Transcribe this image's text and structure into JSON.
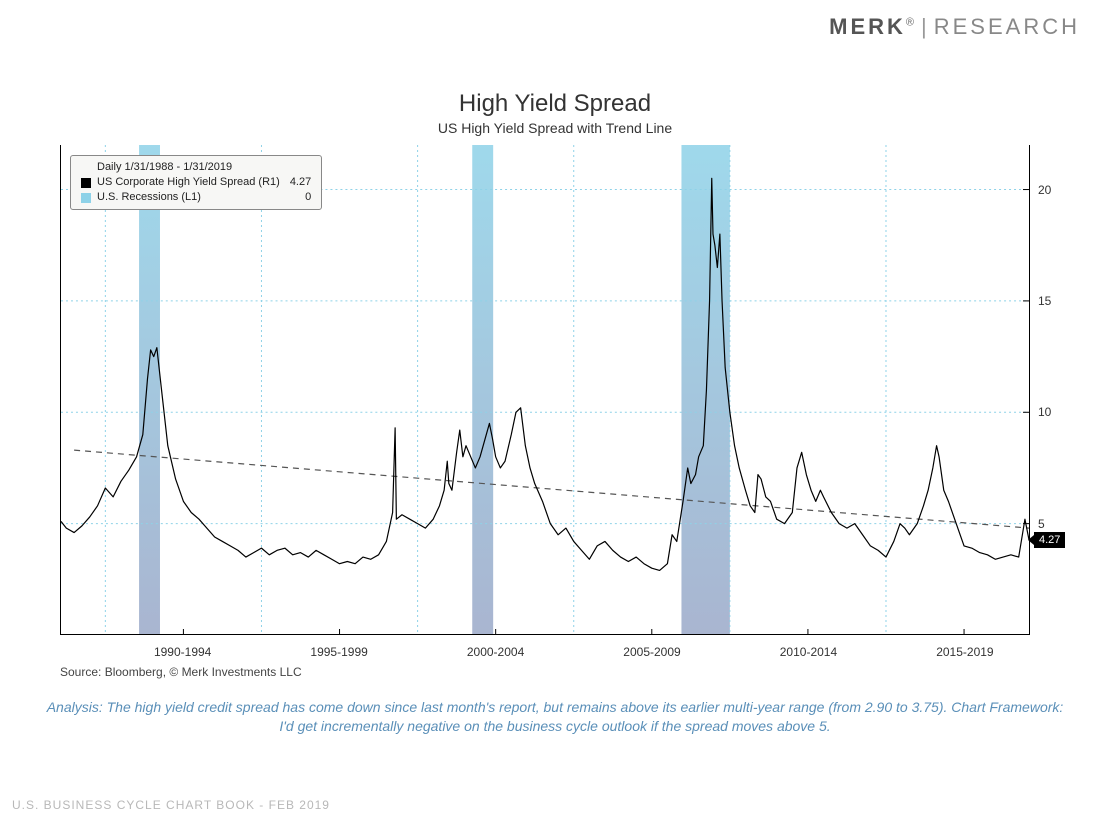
{
  "logo": {
    "brand": "MERK",
    "reg": "®",
    "divider": "|",
    "unit": "RESEARCH"
  },
  "title": "High Yield Spread",
  "subtitle": "US High Yield Spread with Trend Line",
  "legend": {
    "date_range": "Daily 1/31/1988 - 1/31/2019",
    "series1_label": "US Corporate High Yield Spread (R1)",
    "series1_value": "4.27",
    "series2_label": "U.S. Recessions (L1)",
    "series2_value": "0"
  },
  "chart": {
    "type": "line",
    "background_color": "#ffffff",
    "grid_color": "#8ed2e8",
    "grid_dash": "2,3",
    "series_color": "#000000",
    "series_line_width": 1.2,
    "trend_color": "#555555",
    "trend_dash": "6,5",
    "trend_line_width": 1.2,
    "recession_fill_top": "#8ed2e8",
    "recession_fill_bottom": "#9aa8c8",
    "x_range": [
      1988.08,
      2019.08
    ],
    "y_range": [
      0,
      22
    ],
    "y_ticks": [
      5,
      10,
      15,
      20
    ],
    "x_tick_labels": [
      {
        "pos": 1992,
        "label": "1990-1994"
      },
      {
        "pos": 1997,
        "label": "1995-1999"
      },
      {
        "pos": 2002,
        "label": "2000-2004"
      },
      {
        "pos": 2007,
        "label": "2005-2009"
      },
      {
        "pos": 2012,
        "label": "2010-2014"
      },
      {
        "pos": 2017,
        "label": "2015-2019"
      }
    ],
    "x_grid_at": [
      1989.5,
      1994.5,
      1999.5,
      2004.5,
      2009.5,
      2014.5
    ],
    "recessions": [
      {
        "start": 1990.58,
        "end": 1991.25
      },
      {
        "start": 2001.25,
        "end": 2001.92
      },
      {
        "start": 2007.95,
        "end": 2009.5
      }
    ],
    "trend_line": {
      "x1": 1988.5,
      "y1": 8.3,
      "x2": 2019.08,
      "y2": 4.8
    },
    "current_badge": {
      "value": "4.27",
      "y": 4.27
    },
    "series": [
      [
        1988.08,
        5.1
      ],
      [
        1988.25,
        4.8
      ],
      [
        1988.5,
        4.6
      ],
      [
        1988.75,
        4.9
      ],
      [
        1989.0,
        5.3
      ],
      [
        1989.25,
        5.8
      ],
      [
        1989.5,
        6.6
      ],
      [
        1989.75,
        6.2
      ],
      [
        1990.0,
        6.9
      ],
      [
        1990.25,
        7.4
      ],
      [
        1990.5,
        8.0
      ],
      [
        1990.7,
        9.0
      ],
      [
        1990.85,
        11.5
      ],
      [
        1990.95,
        12.8
      ],
      [
        1991.05,
        12.5
      ],
      [
        1991.15,
        12.9
      ],
      [
        1991.3,
        11.0
      ],
      [
        1991.5,
        8.5
      ],
      [
        1991.75,
        7.0
      ],
      [
        1992.0,
        6.0
      ],
      [
        1992.25,
        5.5
      ],
      [
        1992.5,
        5.2
      ],
      [
        1992.75,
        4.8
      ],
      [
        1993.0,
        4.4
      ],
      [
        1993.25,
        4.2
      ],
      [
        1993.5,
        4.0
      ],
      [
        1993.75,
        3.8
      ],
      [
        1994.0,
        3.5
      ],
      [
        1994.25,
        3.7
      ],
      [
        1994.5,
        3.9
      ],
      [
        1994.75,
        3.6
      ],
      [
        1995.0,
        3.8
      ],
      [
        1995.25,
        3.9
      ],
      [
        1995.5,
        3.6
      ],
      [
        1995.75,
        3.7
      ],
      [
        1996.0,
        3.5
      ],
      [
        1996.25,
        3.8
      ],
      [
        1996.5,
        3.6
      ],
      [
        1996.75,
        3.4
      ],
      [
        1997.0,
        3.2
      ],
      [
        1997.25,
        3.3
      ],
      [
        1997.5,
        3.2
      ],
      [
        1997.75,
        3.5
      ],
      [
        1998.0,
        3.4
      ],
      [
        1998.25,
        3.6
      ],
      [
        1998.5,
        4.2
      ],
      [
        1998.7,
        5.5
      ],
      [
        1998.78,
        9.3
      ],
      [
        1998.82,
        5.2
      ],
      [
        1999.0,
        5.4
      ],
      [
        1999.25,
        5.2
      ],
      [
        1999.5,
        5.0
      ],
      [
        1999.75,
        4.8
      ],
      [
        2000.0,
        5.2
      ],
      [
        2000.2,
        5.8
      ],
      [
        2000.35,
        6.5
      ],
      [
        2000.45,
        7.8
      ],
      [
        2000.5,
        6.8
      ],
      [
        2000.6,
        6.5
      ],
      [
        2000.75,
        8.2
      ],
      [
        2000.85,
        9.2
      ],
      [
        2000.95,
        8.0
      ],
      [
        2001.05,
        8.5
      ],
      [
        2001.2,
        8.0
      ],
      [
        2001.35,
        7.5
      ],
      [
        2001.5,
        8.0
      ],
      [
        2001.7,
        9.0
      ],
      [
        2001.8,
        9.5
      ],
      [
        2001.9,
        8.8
      ],
      [
        2002.0,
        8.0
      ],
      [
        2002.15,
        7.5
      ],
      [
        2002.3,
        7.8
      ],
      [
        2002.5,
        9.0
      ],
      [
        2002.65,
        10.0
      ],
      [
        2002.8,
        10.2
      ],
      [
        2002.95,
        8.5
      ],
      [
        2003.1,
        7.5
      ],
      [
        2003.25,
        6.8
      ],
      [
        2003.5,
        6.0
      ],
      [
        2003.75,
        5.0
      ],
      [
        2004.0,
        4.5
      ],
      [
        2004.25,
        4.8
      ],
      [
        2004.5,
        4.2
      ],
      [
        2004.75,
        3.8
      ],
      [
        2005.0,
        3.4
      ],
      [
        2005.25,
        4.0
      ],
      [
        2005.5,
        4.2
      ],
      [
        2005.75,
        3.8
      ],
      [
        2006.0,
        3.5
      ],
      [
        2006.25,
        3.3
      ],
      [
        2006.5,
        3.5
      ],
      [
        2006.75,
        3.2
      ],
      [
        2007.0,
        3.0
      ],
      [
        2007.25,
        2.9
      ],
      [
        2007.5,
        3.2
      ],
      [
        2007.65,
        4.5
      ],
      [
        2007.8,
        4.2
      ],
      [
        2008.0,
        6.0
      ],
      [
        2008.15,
        7.5
      ],
      [
        2008.25,
        6.8
      ],
      [
        2008.4,
        7.2
      ],
      [
        2008.5,
        8.0
      ],
      [
        2008.65,
        8.5
      ],
      [
        2008.75,
        11.0
      ],
      [
        2008.85,
        15.0
      ],
      [
        2008.92,
        20.5
      ],
      [
        2008.96,
        18.0
      ],
      [
        2009.02,
        17.5
      ],
      [
        2009.1,
        16.5
      ],
      [
        2009.18,
        18.0
      ],
      [
        2009.25,
        15.0
      ],
      [
        2009.35,
        12.0
      ],
      [
        2009.5,
        10.0
      ],
      [
        2009.65,
        8.5
      ],
      [
        2009.8,
        7.5
      ],
      [
        2010.0,
        6.5
      ],
      [
        2010.15,
        5.8
      ],
      [
        2010.3,
        5.5
      ],
      [
        2010.4,
        7.2
      ],
      [
        2010.5,
        7.0
      ],
      [
        2010.65,
        6.2
      ],
      [
        2010.8,
        6.0
      ],
      [
        2011.0,
        5.2
      ],
      [
        2011.25,
        5.0
      ],
      [
        2011.5,
        5.5
      ],
      [
        2011.65,
        7.5
      ],
      [
        2011.8,
        8.2
      ],
      [
        2011.95,
        7.2
      ],
      [
        2012.1,
        6.5
      ],
      [
        2012.25,
        6.0
      ],
      [
        2012.4,
        6.5
      ],
      [
        2012.5,
        6.2
      ],
      [
        2012.75,
        5.5
      ],
      [
        2013.0,
        5.0
      ],
      [
        2013.25,
        4.8
      ],
      [
        2013.5,
        5.0
      ],
      [
        2013.75,
        4.5
      ],
      [
        2014.0,
        4.0
      ],
      [
        2014.25,
        3.8
      ],
      [
        2014.5,
        3.5
      ],
      [
        2014.75,
        4.2
      ],
      [
        2014.95,
        5.0
      ],
      [
        2015.1,
        4.8
      ],
      [
        2015.25,
        4.5
      ],
      [
        2015.5,
        5.0
      ],
      [
        2015.7,
        5.8
      ],
      [
        2015.85,
        6.5
      ],
      [
        2016.0,
        7.5
      ],
      [
        2016.12,
        8.5
      ],
      [
        2016.2,
        8.0
      ],
      [
        2016.35,
        6.5
      ],
      [
        2016.5,
        6.0
      ],
      [
        2016.75,
        5.0
      ],
      [
        2017.0,
        4.0
      ],
      [
        2017.25,
        3.9
      ],
      [
        2017.5,
        3.7
      ],
      [
        2017.75,
        3.6
      ],
      [
        2018.0,
        3.4
      ],
      [
        2018.25,
        3.5
      ],
      [
        2018.5,
        3.6
      ],
      [
        2018.75,
        3.5
      ],
      [
        2018.95,
        5.2
      ],
      [
        2019.08,
        4.27
      ]
    ]
  },
  "source": "Source: Bloomberg, © Merk Investments LLC",
  "analysis": "Analysis: The high yield credit spread has come down since last month's report, but remains above its earlier multi-year range (from 2.90 to 3.75). Chart Framework: I'd get incrementally negative on the business cycle outlook if the spread moves above 5.",
  "footer": "U.S. BUSINESS CYCLE CHART BOOK - FEB 2019"
}
